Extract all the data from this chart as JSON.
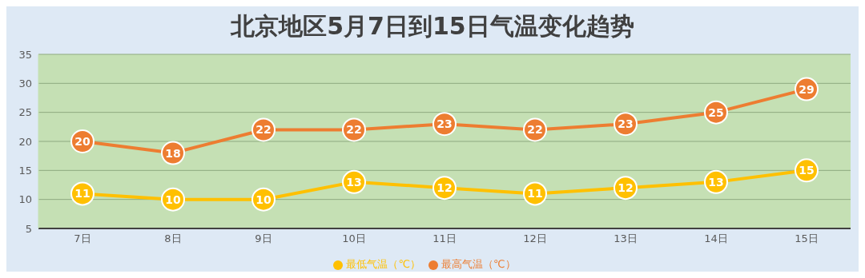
{
  "chart_data": {
    "type": "line",
    "title": "北京地区5月7日到15日气温变化趋势",
    "categories": [
      "7日",
      "8日",
      "9日",
      "10日",
      "11日",
      "12日",
      "13日",
      "14日",
      "15日"
    ],
    "series": [
      {
        "name": "最高气温（℃）",
        "color": "#ed7d31",
        "values": [
          20,
          18,
          22,
          22,
          23,
          22,
          23,
          25,
          29
        ]
      },
      {
        "name": "最低气温（℃）",
        "color": "#ffc000",
        "values": [
          11,
          10,
          10,
          13,
          12,
          11,
          12,
          13,
          15
        ]
      }
    ],
    "ylim": [
      5,
      35
    ],
    "yticks": [
      5,
      10,
      15,
      20,
      25,
      30,
      35
    ],
    "grid": "y",
    "legend": "bottom",
    "marker": "circle",
    "line_style": "solid",
    "data_labels": true
  }
}
